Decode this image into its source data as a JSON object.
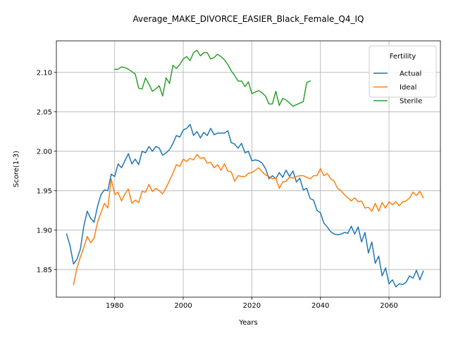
{
  "chart_data": {
    "type": "line",
    "title": "Average_MAKE_DIVORCE_EASIER_Black_Female_Q4_IQ",
    "xlabel": "Years",
    "ylabel": "Score(1-3)",
    "xlim": [
      1963,
      2075
    ],
    "ylim": [
      1.815,
      2.14
    ],
    "xticks": [
      1980,
      2000,
      2020,
      2040,
      2060
    ],
    "yticks": [
      1.85,
      1.9,
      1.95,
      2.0,
      2.05,
      2.1
    ],
    "ytick_labels": [
      "1.85",
      "1.90",
      "1.95",
      "2.00",
      "2.05",
      "2.10"
    ],
    "grid": true,
    "legend": {
      "title": "Fertility",
      "position": "top-right"
    },
    "series": [
      {
        "name": "Actual",
        "color": "#1f77b4",
        "x": [
          1966,
          1967,
          1968,
          1969,
          1970,
          1971,
          1972,
          1973,
          1974,
          1975,
          1976,
          1977,
          1978,
          1979,
          1980,
          1981,
          1982,
          1983,
          1984,
          1985,
          1986,
          1987,
          1988,
          1989,
          1990,
          1991,
          1992,
          1993,
          1994,
          1995,
          1996,
          1997,
          1998,
          1999,
          2000,
          2001,
          2002,
          2003,
          2004,
          2005,
          2006,
          2007,
          2008,
          2009,
          2010,
          2011,
          2012,
          2013,
          2014,
          2015,
          2016,
          2017,
          2018,
          2019,
          2020,
          2021,
          2022,
          2023,
          2024,
          2025,
          2026,
          2027,
          2028,
          2029,
          2030,
          2031,
          2032,
          2033,
          2034,
          2035,
          2036,
          2037,
          2038,
          2039,
          2040,
          2041,
          2042,
          2043,
          2044,
          2045,
          2046,
          2047,
          2048,
          2049,
          2050,
          2051,
          2052,
          2053,
          2054,
          2055,
          2056,
          2057,
          2058,
          2059,
          2060,
          2061,
          2062,
          2063,
          2064,
          2065,
          2066,
          2067,
          2068,
          2069,
          2070
        ],
        "values": [
          1.895,
          1.88,
          1.857,
          1.863,
          1.876,
          1.905,
          1.924,
          1.915,
          1.91,
          1.93,
          1.945,
          1.951,
          1.95,
          1.971,
          1.968,
          1.984,
          1.979,
          1.988,
          1.997,
          1.984,
          1.99,
          1.983,
          2.0,
          1.998,
          2.006,
          2.0,
          2.006,
          2.004,
          1.995,
          1.998,
          2.002,
          2.01,
          2.02,
          2.018,
          2.027,
          2.029,
          2.034,
          2.02,
          2.025,
          2.017,
          2.024,
          2.02,
          2.029,
          2.021,
          2.023,
          2.023,
          2.023,
          2.026,
          2.011,
          2.009,
          2.004,
          2.01,
          1.998,
          2.0,
          1.988,
          1.989,
          1.988,
          1.985,
          1.978,
          1.965,
          1.969,
          1.965,
          1.973,
          1.967,
          1.976,
          1.968,
          1.975,
          1.961,
          1.966,
          1.951,
          1.953,
          1.94,
          1.938,
          1.925,
          1.922,
          1.909,
          1.904,
          1.898,
          1.895,
          1.894,
          1.895,
          1.897,
          1.896,
          1.905,
          1.895,
          1.904,
          1.885,
          1.897,
          1.871,
          1.885,
          1.858,
          1.867,
          1.842,
          1.852,
          1.832,
          1.837,
          1.828,
          1.832,
          1.831,
          1.834,
          1.842,
          1.839,
          1.849,
          1.837,
          1.848
        ]
      },
      {
        "name": "Ideal",
        "color": "#ff7f0e",
        "x": [
          1968,
          1969,
          1970,
          1971,
          1972,
          1973,
          1974,
          1975,
          1976,
          1977,
          1978,
          1979,
          1980,
          1981,
          1982,
          1983,
          1984,
          1985,
          1986,
          1987,
          1988,
          1989,
          1990,
          1991,
          1992,
          1993,
          1994,
          1995,
          1996,
          1997,
          1998,
          1999,
          2000,
          2001,
          2002,
          2003,
          2004,
          2005,
          2006,
          2007,
          2008,
          2009,
          2010,
          2011,
          2012,
          2013,
          2014,
          2015,
          2016,
          2017,
          2018,
          2019,
          2020,
          2021,
          2022,
          2023,
          2024,
          2025,
          2026,
          2027,
          2028,
          2029,
          2030,
          2031,
          2032,
          2033,
          2034,
          2035,
          2036,
          2037,
          2038,
          2039,
          2040,
          2041,
          2042,
          2043,
          2044,
          2045,
          2046,
          2047,
          2048,
          2049,
          2050,
          2051,
          2052,
          2053,
          2054,
          2055,
          2056,
          2057,
          2058,
          2059,
          2060,
          2061,
          2062,
          2063,
          2064,
          2065,
          2066,
          2067,
          2068,
          2069,
          2070
        ],
        "values": [
          1.831,
          1.852,
          1.866,
          1.878,
          1.892,
          1.884,
          1.89,
          1.91,
          1.922,
          1.934,
          1.928,
          1.965,
          1.945,
          1.948,
          1.937,
          1.946,
          1.952,
          1.934,
          1.938,
          1.935,
          1.949,
          1.948,
          1.958,
          1.949,
          1.953,
          1.95,
          1.946,
          1.954,
          1.963,
          1.972,
          1.983,
          1.981,
          1.99,
          1.987,
          1.991,
          1.989,
          1.996,
          1.991,
          1.992,
          1.985,
          1.986,
          1.979,
          1.983,
          1.976,
          1.984,
          1.975,
          1.974,
          1.962,
          1.969,
          1.968,
          1.968,
          1.972,
          1.973,
          1.976,
          1.979,
          1.974,
          1.97,
          1.968,
          1.965,
          1.966,
          1.953,
          1.961,
          1.962,
          1.967,
          1.966,
          1.968,
          1.969,
          1.969,
          1.967,
          1.965,
          1.969,
          1.969,
          1.978,
          1.969,
          1.972,
          1.965,
          1.962,
          1.953,
          1.95,
          1.945,
          1.941,
          1.937,
          1.941,
          1.936,
          1.937,
          1.928,
          1.929,
          1.924,
          1.934,
          1.924,
          1.935,
          1.928,
          1.936,
          1.932,
          1.936,
          1.931,
          1.936,
          1.937,
          1.941,
          1.948,
          1.944,
          1.949,
          1.941
        ]
      },
      {
        "name": "Sterile",
        "color": "#2ca02c",
        "x": [
          1980,
          1981,
          1982,
          1983,
          1984,
          1985,
          1986,
          1987,
          1988,
          1989,
          1990,
          1991,
          1992,
          1993,
          1994,
          1995,
          1996,
          1997,
          1998,
          1999,
          2000,
          2001,
          2002,
          2003,
          2004,
          2005,
          2006,
          2007,
          2008,
          2009,
          2010,
          2011,
          2012,
          2013,
          2014,
          2015,
          2016,
          2017,
          2018,
          2019,
          2020,
          2021,
          2022,
          2023,
          2024,
          2025,
          2026,
          2027,
          2028,
          2029,
          2030,
          2031,
          2032,
          2033,
          2034,
          2035,
          2036,
          2037
        ],
        "values": [
          2.104,
          2.104,
          2.107,
          2.106,
          2.104,
          2.101,
          2.098,
          2.08,
          2.079,
          2.093,
          2.085,
          2.076,
          2.079,
          2.083,
          2.07,
          2.093,
          2.086,
          2.109,
          2.105,
          2.11,
          2.117,
          2.12,
          2.115,
          2.125,
          2.128,
          2.121,
          2.125,
          2.125,
          2.117,
          2.119,
          2.123,
          2.12,
          2.116,
          2.11,
          2.102,
          2.096,
          2.089,
          2.089,
          2.082,
          2.088,
          2.073,
          2.075,
          2.077,
          2.074,
          2.07,
          2.06,
          2.06,
          2.076,
          2.058,
          2.067,
          2.065,
          2.061,
          2.057,
          2.059,
          2.061,
          2.063,
          2.087,
          2.089
        ]
      }
    ]
  }
}
